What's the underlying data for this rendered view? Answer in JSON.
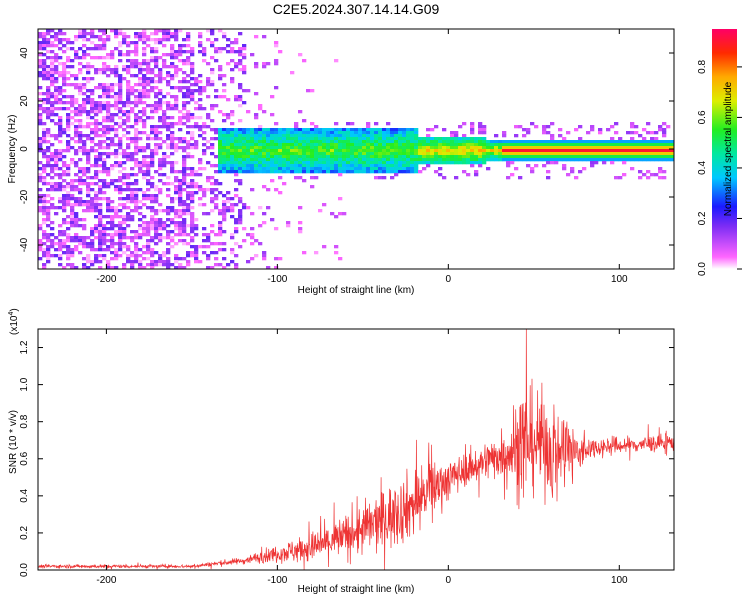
{
  "title": "C2E5.2024.307.14.14.G09",
  "colors": {
    "snr_line": "#ee3333",
    "frame": "#000000",
    "spec_low": "#7a2cf5",
    "spec_mid": "#22e0c0",
    "spec_high": "#ff2a00"
  },
  "chart_data": [
    {
      "type": "heatmap",
      "title": "C2E5.2024.307.14.14.G09",
      "xlabel": "Height of straight line (km)",
      "ylabel": "Frequency (Hz)",
      "xlim": [
        -240,
        132
      ],
      "ylim": [
        -50,
        50
      ],
      "xticks": [
        -200,
        -100,
        0,
        100
      ],
      "yticks": [
        -40,
        -20,
        0,
        20,
        40
      ],
      "colorbar": {
        "label": "Normalized spectral amplitude",
        "range": [
          0.0,
          0.95
        ],
        "ticks": [
          0.0,
          0.2,
          0.4,
          0.6,
          0.8
        ]
      },
      "ridge": {
        "frequency": 0,
        "onset_km": -120,
        "peak_from_km": 30
      }
    },
    {
      "type": "line",
      "xlabel": "Height of straight line (km)",
      "ylabel": "SNR (10 * v/v)",
      "scale_note": "(x10",
      "scale_exp": "4",
      "scale_close": ")",
      "xlim": [
        -240,
        132
      ],
      "ylim": [
        0,
        1.3
      ],
      "xticks": [
        -200,
        -100,
        0,
        100
      ],
      "yticks": [
        0.0,
        0.2,
        0.4,
        0.6,
        0.8,
        1.0,
        1.2
      ],
      "envelope": {
        "x": [
          -240,
          -150,
          -120,
          -100,
          -80,
          -60,
          -40,
          -20,
          -10,
          10,
          30,
          40,
          50,
          60,
          70,
          78,
          82,
          100,
          132
        ],
        "mid": [
          0.02,
          0.02,
          0.05,
          0.09,
          0.12,
          0.18,
          0.26,
          0.36,
          0.44,
          0.54,
          0.62,
          0.66,
          0.7,
          0.66,
          0.65,
          0.62,
          0.66,
          0.67,
          0.69
        ],
        "amp": [
          0.01,
          0.01,
          0.02,
          0.05,
          0.09,
          0.13,
          0.18,
          0.2,
          0.16,
          0.09,
          0.13,
          0.28,
          0.3,
          0.28,
          0.22,
          0.12,
          0.06,
          0.05,
          0.05
        ]
      }
    }
  ]
}
